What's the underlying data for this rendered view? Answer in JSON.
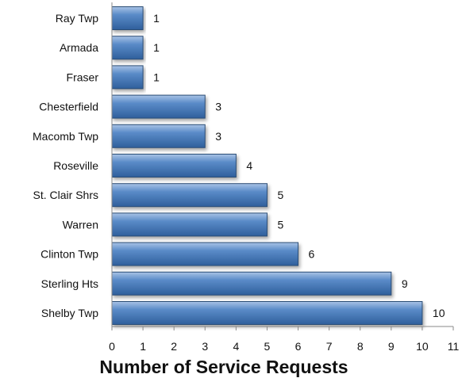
{
  "chart_data": {
    "type": "bar",
    "orientation": "horizontal",
    "title": "",
    "xlabel": "Number of Service Requests",
    "ylabel": "",
    "categories": [
      "Ray Twp",
      "Armada",
      "Fraser",
      "Chesterfield",
      "Macomb Twp",
      "Roseville",
      "St. Clair Shrs",
      "Warren",
      "Clinton Twp",
      "Sterling Hts",
      "Shelby Twp"
    ],
    "values": [
      1,
      1,
      1,
      3,
      3,
      4,
      5,
      5,
      6,
      9,
      10
    ],
    "xlim": [
      0,
      11
    ],
    "xticks": [
      "0",
      "1",
      "2",
      "3",
      "4",
      "5",
      "6",
      "7",
      "8",
      "9",
      "10",
      "11"
    ],
    "grid": false,
    "legend": "none",
    "bar_color": "#4f81bd",
    "bar_edge_color": "#2c4d75"
  }
}
